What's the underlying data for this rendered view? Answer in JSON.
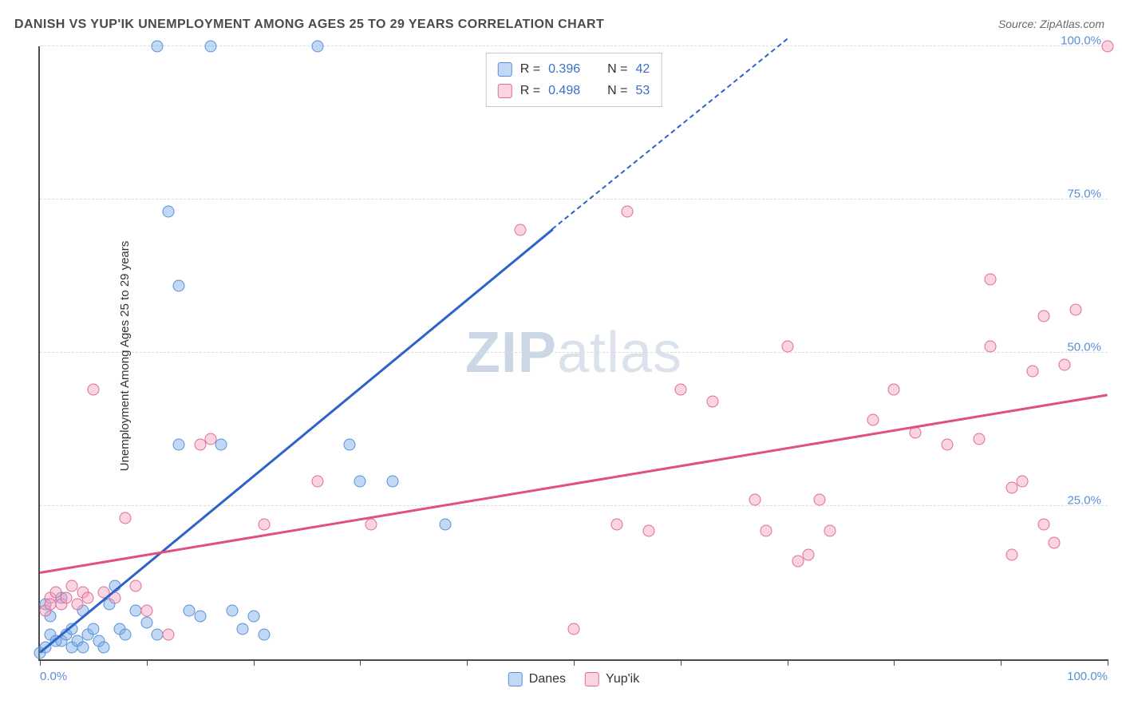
{
  "title": "DANISH VS YUP'IK UNEMPLOYMENT AMONG AGES 25 TO 29 YEARS CORRELATION CHART",
  "source": "Source: ZipAtlas.com",
  "ylabel": "Unemployment Among Ages 25 to 29 years",
  "watermark_a": "ZIP",
  "watermark_b": "atlas",
  "chart": {
    "type": "scatter",
    "xlim": [
      0,
      100
    ],
    "ylim": [
      0,
      100
    ],
    "xtick_minor_step": 10,
    "xtick_labels": [
      {
        "pos": 0,
        "label": "0.0%"
      },
      {
        "pos": 100,
        "label": "100.0%"
      }
    ],
    "ytick_labels": [
      {
        "pos": 25,
        "label": "25.0%"
      },
      {
        "pos": 50,
        "label": "50.0%"
      },
      {
        "pos": 75,
        "label": "75.0%"
      },
      {
        "pos": 100,
        "label": "100.0%"
      }
    ],
    "grid_color": "#dcdcdc",
    "background_color": "#ffffff",
    "axis_color": "#4a4a4a",
    "point_radius": 7.5,
    "series": [
      {
        "name": "Danes",
        "fill": "rgba(118,170,230,0.45)",
        "stroke": "#5a8fd6",
        "r": 0.396,
        "n": 42,
        "trend": {
          "x1": 0,
          "y1": 1,
          "x2": 48,
          "y2": 70,
          "color": "#2e62c9",
          "width": 2.5,
          "dash_extend_to": {
            "x": 70,
            "y": 101
          }
        },
        "points": [
          [
            0,
            1
          ],
          [
            0.5,
            2
          ],
          [
            1,
            7
          ],
          [
            1,
            4
          ],
          [
            1.5,
            3
          ],
          [
            2,
            3
          ],
          [
            2,
            10
          ],
          [
            2.5,
            4
          ],
          [
            3,
            2
          ],
          [
            3,
            5
          ],
          [
            3.5,
            3
          ],
          [
            4,
            2
          ],
          [
            4,
            8
          ],
          [
            4.5,
            4
          ],
          [
            5,
            5
          ],
          [
            5.5,
            3
          ],
          [
            6,
            2
          ],
          [
            6.5,
            9
          ],
          [
            7,
            12
          ],
          [
            7.5,
            5
          ],
          [
            8,
            4
          ],
          [
            9,
            8
          ],
          [
            10,
            6
          ],
          [
            11,
            4
          ],
          [
            11,
            100
          ],
          [
            12,
            73
          ],
          [
            13,
            35
          ],
          [
            13,
            61
          ],
          [
            14,
            8
          ],
          [
            15,
            7
          ],
          [
            16,
            100
          ],
          [
            17,
            35
          ],
          [
            18,
            8
          ],
          [
            19,
            5
          ],
          [
            20,
            7
          ],
          [
            21,
            4
          ],
          [
            26,
            100
          ],
          [
            29,
            35
          ],
          [
            30,
            29
          ],
          [
            33,
            29
          ],
          [
            38,
            22
          ],
          [
            0.5,
            9
          ]
        ]
      },
      {
        "name": "Yup'ik",
        "fill": "rgba(244,160,190,0.45)",
        "stroke": "#e06a94",
        "r": 0.498,
        "n": 53,
        "trend": {
          "x1": 0,
          "y1": 14,
          "x2": 100,
          "y2": 43,
          "color": "#e05080",
          "width": 2.5
        },
        "points": [
          [
            0.5,
            8
          ],
          [
            1,
            10
          ],
          [
            1,
            9
          ],
          [
            1.5,
            11
          ],
          [
            2,
            9
          ],
          [
            2.5,
            10
          ],
          [
            3,
            12
          ],
          [
            3.5,
            9
          ],
          [
            4,
            11
          ],
          [
            4.5,
            10
          ],
          [
            5,
            44
          ],
          [
            6,
            11
          ],
          [
            7,
            10
          ],
          [
            8,
            23
          ],
          [
            9,
            12
          ],
          [
            10,
            8
          ],
          [
            12,
            4
          ],
          [
            15,
            35
          ],
          [
            16,
            36
          ],
          [
            21,
            22
          ],
          [
            26,
            29
          ],
          [
            31,
            22
          ],
          [
            45,
            70
          ],
          [
            50,
            5
          ],
          [
            54,
            22
          ],
          [
            55,
            73
          ],
          [
            57,
            21
          ],
          [
            60,
            44
          ],
          [
            63,
            42
          ],
          [
            67,
            26
          ],
          [
            68,
            21
          ],
          [
            70,
            51
          ],
          [
            71,
            16
          ],
          [
            72,
            17
          ],
          [
            73,
            26
          ],
          [
            74,
            21
          ],
          [
            78,
            39
          ],
          [
            80,
            44
          ],
          [
            82,
            37
          ],
          [
            85,
            35
          ],
          [
            88,
            36
          ],
          [
            89,
            62
          ],
          [
            89,
            51
          ],
          [
            91,
            28
          ],
          [
            91,
            17
          ],
          [
            92,
            29
          ],
          [
            93,
            47
          ],
          [
            94,
            22
          ],
          [
            94,
            56
          ],
          [
            95,
            19
          ],
          [
            96,
            48
          ],
          [
            97,
            57
          ],
          [
            100,
            100
          ]
        ]
      }
    ]
  },
  "legend_top": {
    "r_label": "R =",
    "n_label": "N ="
  },
  "legend_bottom": [
    {
      "label": "Danes",
      "fill": "rgba(118,170,230,0.45)",
      "stroke": "#5a8fd6"
    },
    {
      "label": "Yup'ik",
      "fill": "rgba(244,160,190,0.45)",
      "stroke": "#e06a94"
    }
  ]
}
